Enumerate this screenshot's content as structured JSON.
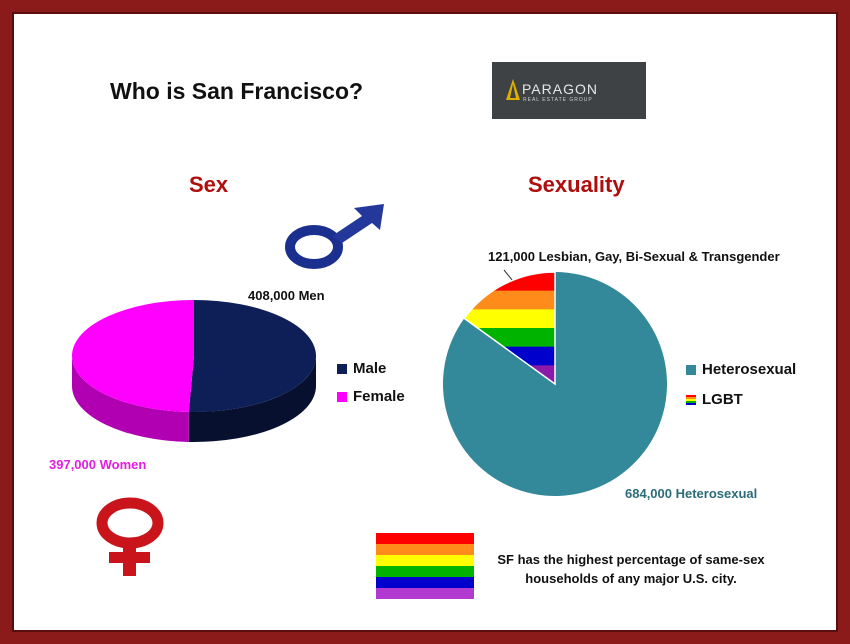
{
  "title": "Who is San Francisco?",
  "logo": {
    "name": "PARAGON",
    "sub": "REAL ESTATE GROUP"
  },
  "colors": {
    "frame": "#8b1a1a",
    "heading": "#b00d0d",
    "male": "#0e1f57",
    "female": "#ff00ff",
    "women_label": "#e01ee0",
    "heterosexual": "#338899",
    "hetero_label": "#2c6b78",
    "rainbow": [
      "#ff0000",
      "#ff8c1a",
      "#ffff00",
      "#00b300",
      "#0000cc",
      "#8b1aa8"
    ]
  },
  "icons": [
    "male-symbol-icon",
    "female-symbol-icon",
    "rainbow-flag-icon",
    "paragon-logo-icon"
  ],
  "note": {
    "line1": "SF has the highest percentage of same-sex",
    "line2": "households of any major U.S. city."
  },
  "chart_data": [
    {
      "type": "pie",
      "style": "3d",
      "title": "Sex",
      "categories": [
        "Male",
        "Female"
      ],
      "values": [
        408000,
        397000
      ],
      "labels": [
        "408,000 Men",
        "397,000 Women"
      ],
      "legend": [
        "Male",
        "Female"
      ],
      "legend_position": "right"
    },
    {
      "type": "pie",
      "title": "Sexuality",
      "categories": [
        "Heterosexual",
        "LGBT"
      ],
      "values": [
        684000,
        121000
      ],
      "labels": [
        "684,000 Heterosexual",
        "121,000 Lesbian, Gay, Bi-Sexual & Transgender"
      ],
      "legend": [
        "Heterosexual",
        "LGBT"
      ],
      "legend_position": "right"
    }
  ]
}
